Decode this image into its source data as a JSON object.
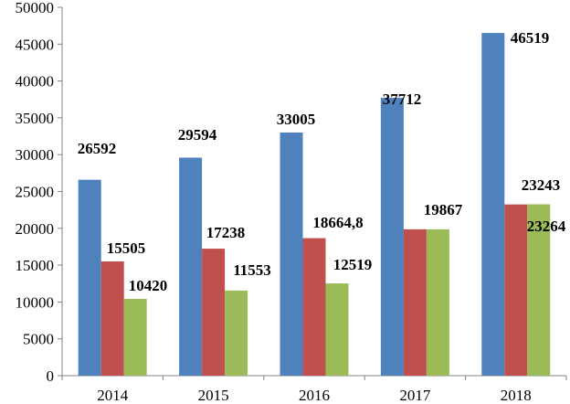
{
  "chart_data": {
    "type": "bar",
    "title": "",
    "xlabel": "",
    "ylabel": "",
    "categories": [
      "2014",
      "2015",
      "2016",
      "2017",
      "2018"
    ],
    "series": [
      {
        "values": [
          26592,
          29594,
          33005,
          37712,
          46519
        ],
        "color": "#4F81BD",
        "labels": [
          "26592",
          "29594",
          "33005",
          "37712",
          "46519"
        ]
      },
      {
        "values": [
          15505,
          17238,
          18664.8,
          19867,
          23243
        ],
        "color": "#C0504D",
        "labels": [
          "15505",
          "17238",
          "18664,8",
          "19867",
          "23243"
        ]
      },
      {
        "values": [
          10420,
          11553,
          12519,
          19867,
          23264
        ],
        "color": "#9BBB59",
        "labels": [
          "10420",
          "11553",
          "12519",
          "",
          "23264"
        ]
      }
    ],
    "ylim": [
      0,
      50000
    ],
    "yticks": [
      "0",
      "5000",
      "10000",
      "15000",
      "20000",
      "25000",
      "30000",
      "35000",
      "40000",
      "45000",
      "50000"
    ],
    "grid": false,
    "legend": "none"
  }
}
